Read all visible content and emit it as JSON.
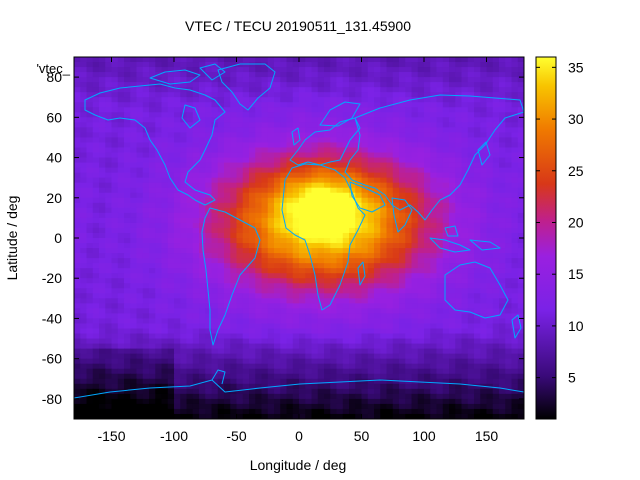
{
  "chart_data": {
    "type": "heatmap",
    "title": "VTEC / TECU 20190511_131.45900",
    "key_label": "'vtec_",
    "xlabel": "Longitude / deg",
    "ylabel": "Latitude / deg",
    "xlim": [
      -180,
      180
    ],
    "ylim": [
      -90,
      90
    ],
    "xticks": [
      -150,
      -100,
      -50,
      0,
      50,
      100,
      150
    ],
    "yticks": [
      -80,
      -60,
      -40,
      -20,
      0,
      20,
      40,
      60,
      80
    ],
    "colorbar": {
      "min": 1,
      "max": 36,
      "ticks": [
        5,
        10,
        15,
        20,
        25,
        30,
        35
      ]
    },
    "grid_resolution_deg": {
      "lon": 5,
      "lat": 2.5
    },
    "peak": {
      "lon": 20,
      "lat": 17,
      "value": 36
    },
    "background_value": 11,
    "overlay": "coastlines"
  }
}
